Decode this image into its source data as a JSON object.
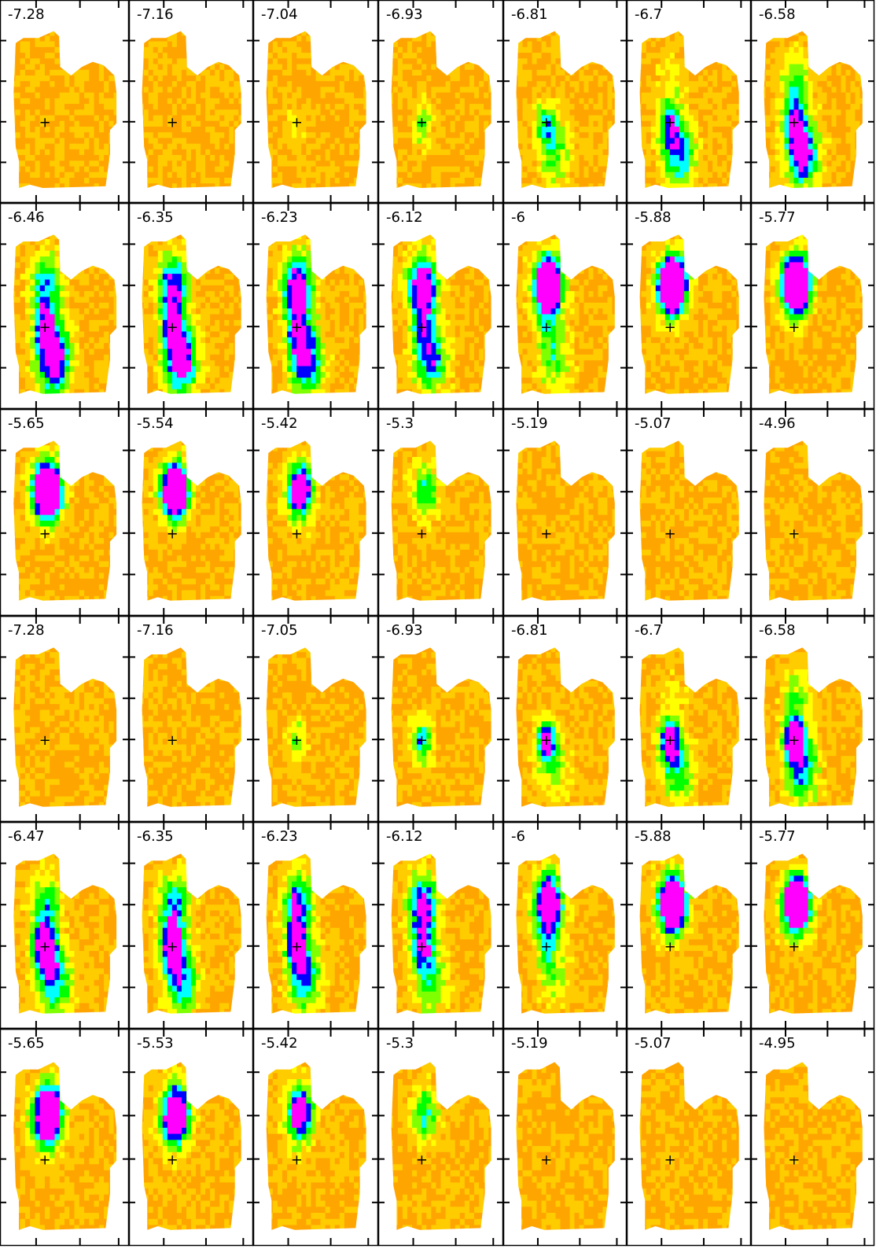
{
  "figure": {
    "rows": 6,
    "cols": 7,
    "panel_labels": [
      [
        "-7.28",
        "-7.16",
        "-7.04",
        "-6.93",
        "-6.81",
        "-6.7",
        "-6.58"
      ],
      [
        "-6.46",
        "-6.35",
        "-6.23",
        "-6.12",
        "-6",
        "-5.88",
        "-5.77"
      ],
      [
        "-5.65",
        "-5.54",
        "-5.42",
        "-5.3",
        "-5.19",
        "-5.07",
        "-4.96"
      ],
      [
        "-7.28",
        "-7.16",
        "-7.05",
        "-6.93",
        "-6.81",
        "-6.7",
        "-6.58"
      ],
      [
        "-6.47",
        "-6.35",
        "-6.23",
        "-6.12",
        "-6",
        "-5.88",
        "-5.77"
      ],
      [
        "-5.65",
        "-5.53",
        "-5.42",
        "-5.3",
        "-5.19",
        "-5.07",
        "-4.95"
      ]
    ],
    "colormap": [
      "#ff0000",
      "#ff8c00",
      "#ffa500",
      "#ffcc00",
      "#ffff00",
      "#7fff00",
      "#00ff00",
      "#00ffff",
      "#0000ff",
      "#ff00ff"
    ],
    "cross_marker": "+",
    "background_color": "#ffffff",
    "frame_color": "#000000"
  }
}
